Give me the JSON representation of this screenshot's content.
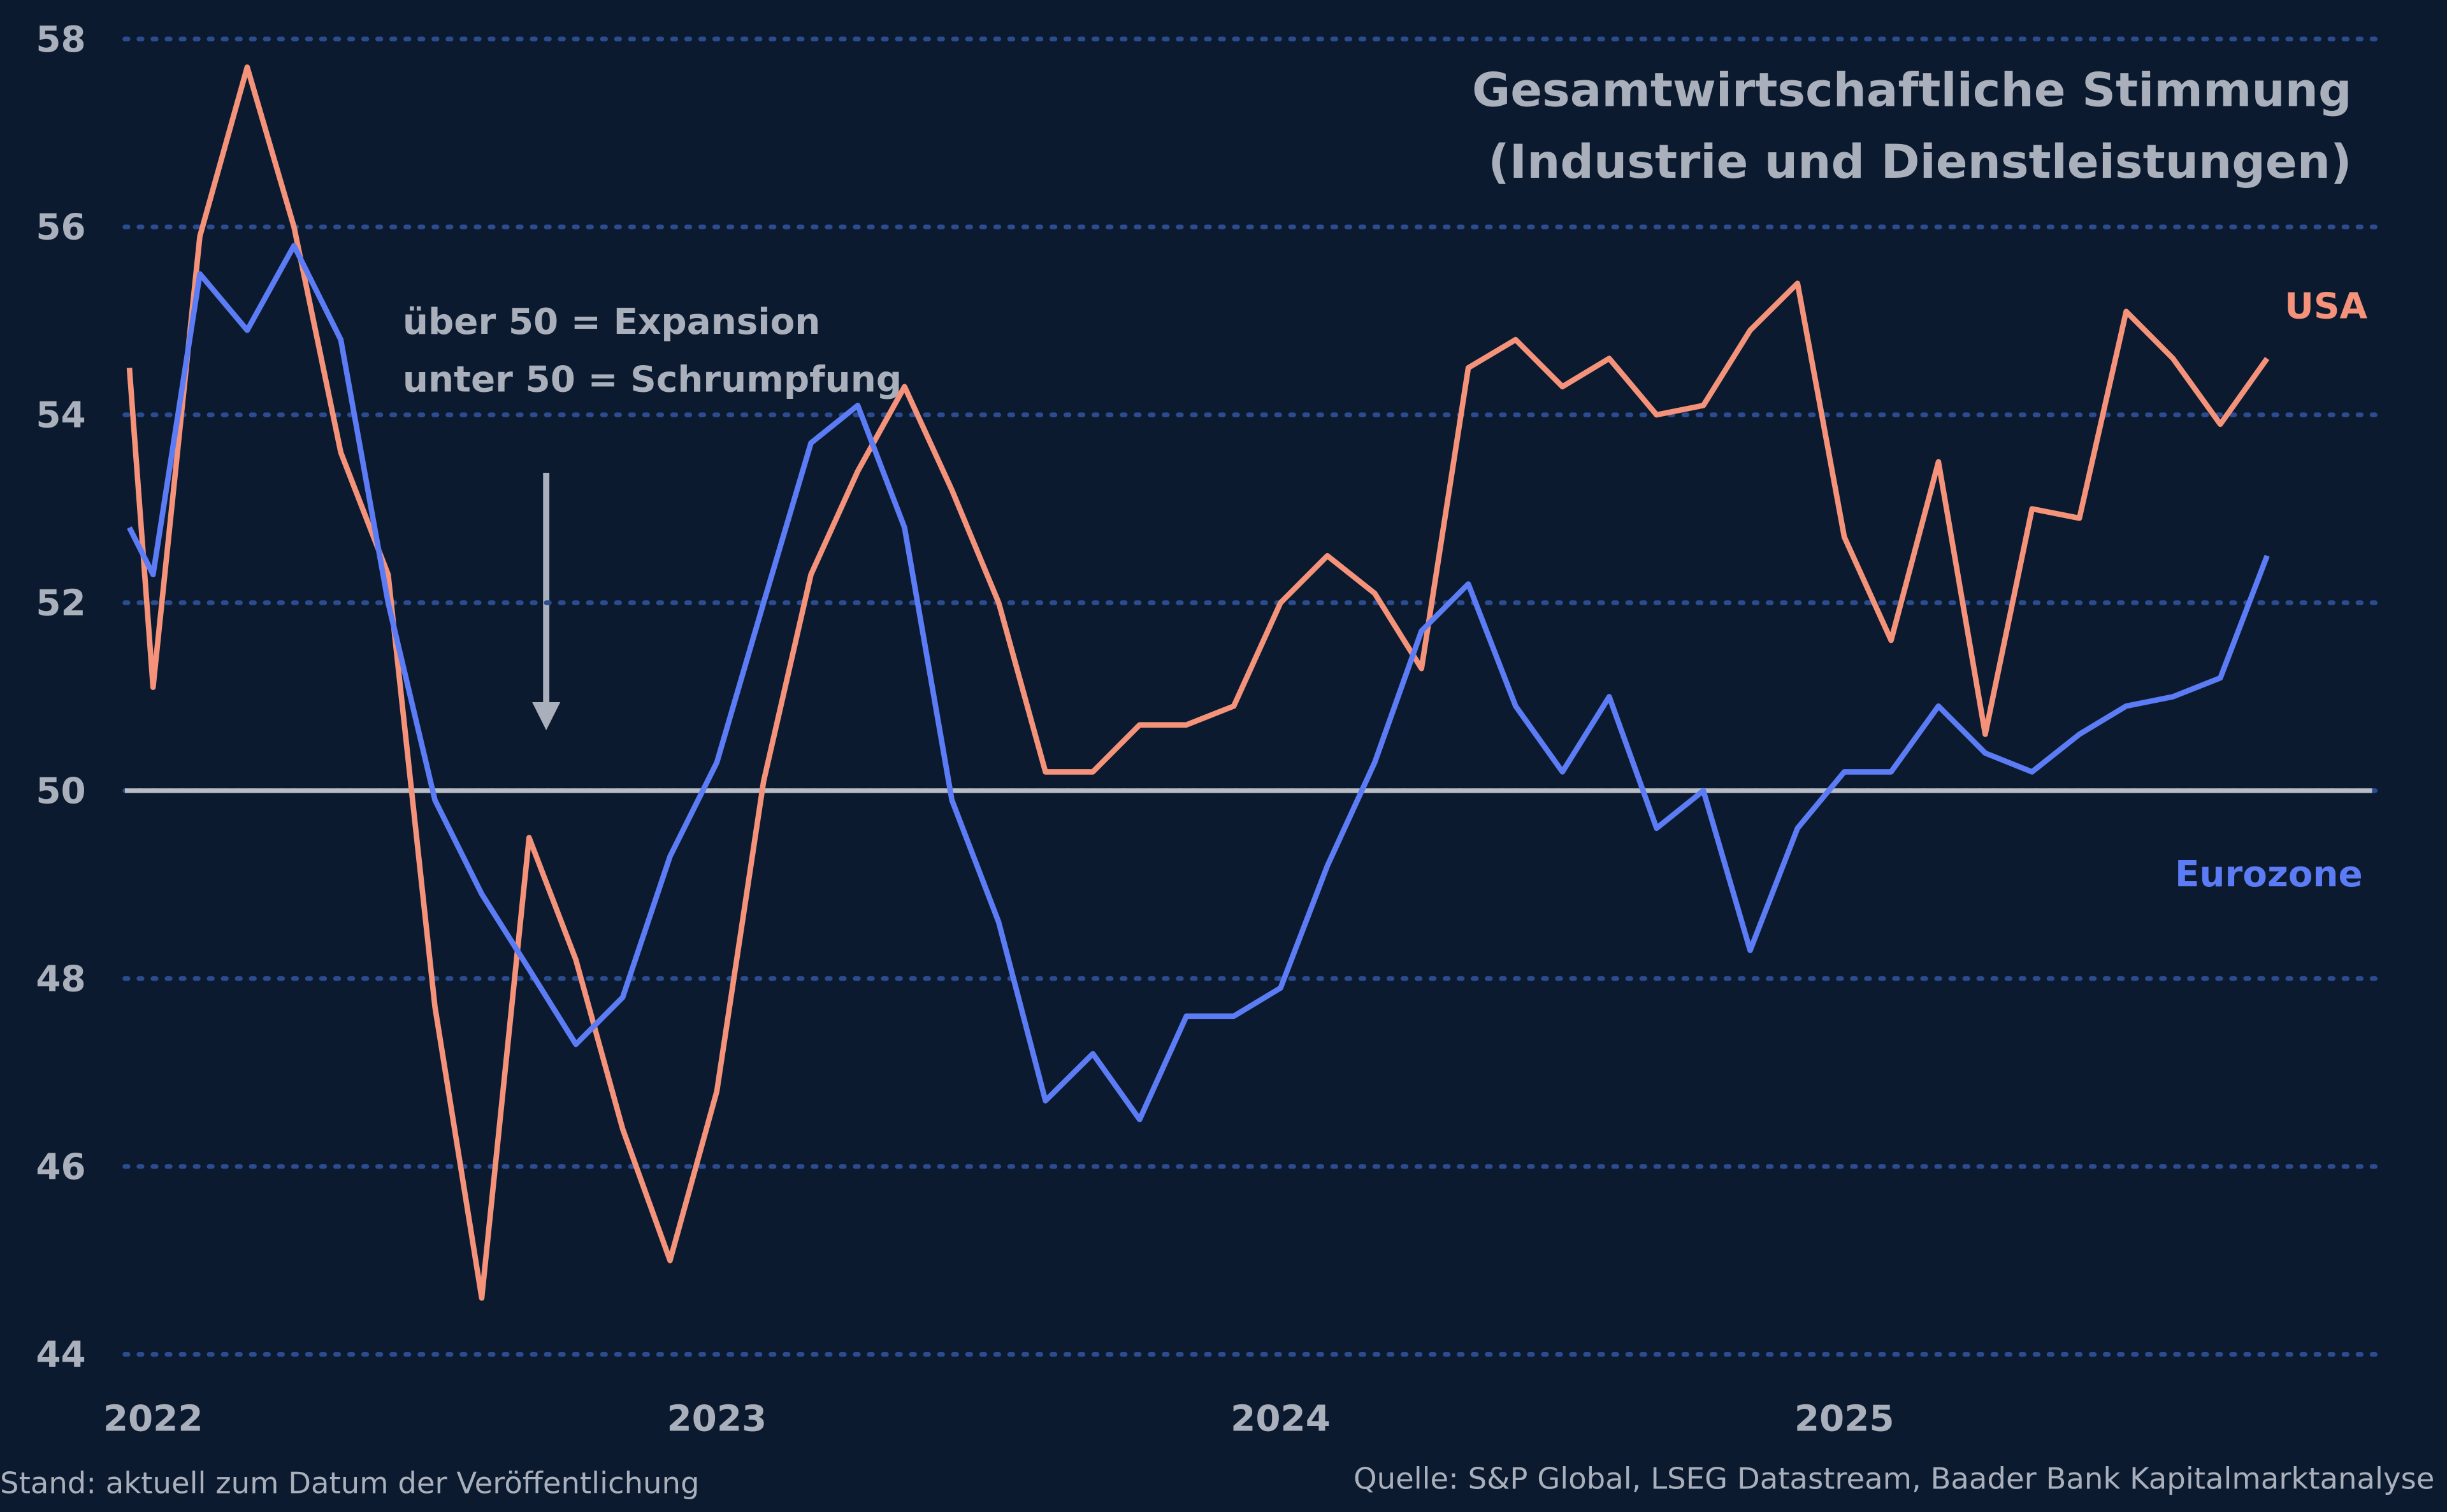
{
  "chart_data": {
    "type": "line",
    "title": "Gesamtwirtschaftliche Stimmung",
    "subtitle": "(Industrie und Dienstleistungen)",
    "annotation": [
      "über 50 = Expansion",
      "unter 50 = Schrumpfung"
    ],
    "footer_left": "Stand: aktuell zum Datum der Veröffentlichung",
    "footer_right": "Quelle: S&P Global, LSEG Datastream, Baader Bank Kapitalmarktanalyse",
    "x": [
      2021.958,
      2022,
      2022.083,
      2022.167,
      2022.25,
      2022.333,
      2022.417,
      2022.5,
      2022.583,
      2022.667,
      2022.75,
      2022.833,
      2022.917,
      2023,
      2023.083,
      2023.167,
      2023.25,
      2023.333,
      2023.417,
      2023.5,
      2023.583,
      2023.667,
      2023.75,
      2023.833,
      2023.917,
      2024,
      2024.083,
      2024.167,
      2024.25,
      2024.333,
      2024.417,
      2024.5,
      2024.583,
      2024.667,
      2024.75,
      2024.833,
      2024.917,
      2025,
      2025.083,
      2025.167,
      2025.25,
      2025.333,
      2025.417,
      2025.5,
      2025.583,
      2025.667,
      2025.75
    ],
    "series": [
      {
        "name": "USA",
        "color": "#f4937a",
        "values": [
          54.5,
          51.1,
          55.9,
          57.7,
          56.0,
          53.6,
          52.3,
          47.7,
          44.6,
          49.5,
          48.2,
          46.4,
          45.0,
          46.8,
          50.1,
          52.3,
          53.4,
          54.3,
          53.2,
          52.0,
          50.2,
          50.2,
          50.7,
          50.7,
          50.9,
          52.0,
          52.5,
          52.1,
          51.3,
          54.5,
          54.8,
          54.3,
          54.6,
          54.0,
          54.1,
          54.9,
          55.4,
          52.7,
          51.6,
          53.5,
          50.6,
          53.0,
          52.9,
          55.1,
          54.6,
          53.9,
          54.6
        ]
      },
      {
        "name": "Eurozone",
        "color": "#5b7cf5",
        "values": [
          52.8,
          52.3,
          55.5,
          54.9,
          55.8,
          54.8,
          52.0,
          49.9,
          48.9,
          48.1,
          47.3,
          47.8,
          49.3,
          50.3,
          52.0,
          53.7,
          54.1,
          52.8,
          49.9,
          48.6,
          46.7,
          47.2,
          46.5,
          47.6,
          47.6,
          47.9,
          49.2,
          50.3,
          51.7,
          52.2,
          50.9,
          50.2,
          51.0,
          49.6,
          50.0,
          48.3,
          49.6,
          50.2,
          50.2,
          50.9,
          50.4,
          50.2,
          50.6,
          50.9,
          51.0,
          51.2,
          52.5
        ]
      }
    ],
    "xlim": [
      2021.95,
      2025.95
    ],
    "xticks": [
      2022,
      2023,
      2024,
      2025
    ],
    "ylim": [
      44,
      58
    ],
    "yticks": [
      44,
      46,
      48,
      50,
      52,
      54,
      56,
      58
    ],
    "grid": true,
    "reference_line": 50
  }
}
